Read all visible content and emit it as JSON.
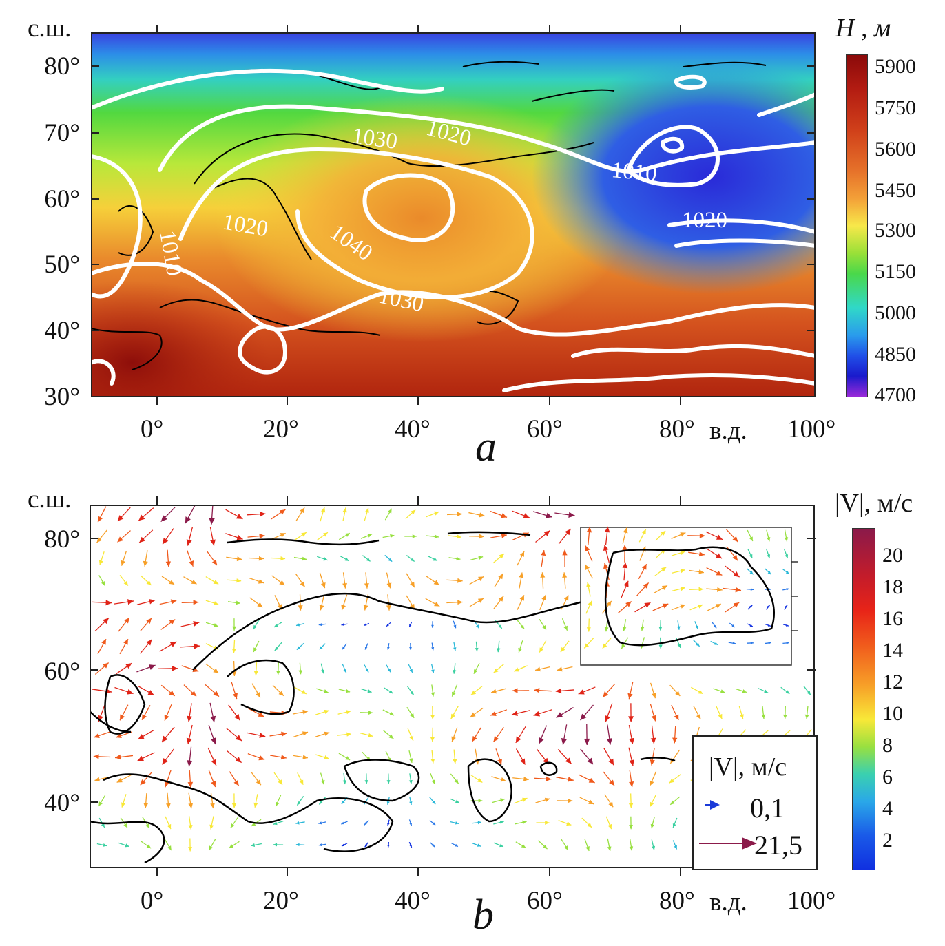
{
  "panel_a": {
    "letter": "a",
    "colorbar_title": "H , м",
    "colorbar_ticks": [
      "5900",
      "5750",
      "5600",
      "5450",
      "5300",
      "5150",
      "5000",
      "4850",
      "4700"
    ],
    "colorbar_colors": [
      "#8b0a0a",
      "#c0301a",
      "#e06820",
      "#f3a038",
      "#f7e84a",
      "#72d93c",
      "#30d8c8",
      "#2878e8",
      "#1818d0",
      "#9a2ad8"
    ],
    "lat_labels": [
      "80°",
      "70°",
      "60°",
      "50°",
      "40°",
      "30°"
    ],
    "lat_unit": "с.ш.",
    "lon_labels": [
      "0°",
      "20°",
      "40°",
      "60°",
      "80°",
      "100°"
    ],
    "lon_unit": "в.д.",
    "isobar_labels": [
      "1020",
      "1030",
      "1010",
      "1010",
      "1020",
      "1040",
      "1030",
      "1020"
    ]
  },
  "panel_b": {
    "letter": "b",
    "colorbar_title": "|V|, м/с",
    "colorbar_ticks": [
      "20",
      "18",
      "16",
      "14",
      "12",
      "10",
      "8",
      "6",
      "4",
      "2"
    ],
    "colorbar_colors": [
      "#8b1a4a",
      "#d81c1c",
      "#f05020",
      "#f8a028",
      "#f8e838",
      "#98e040",
      "#30d0c0",
      "#2888e8",
      "#1030e0"
    ],
    "lat_labels": [
      "80°",
      "60°",
      "40°"
    ],
    "lat_unit": "с.ш.",
    "lon_labels": [
      "0°",
      "20°",
      "40°",
      "60°",
      "80°",
      "100°"
    ],
    "lon_unit": "в.д.",
    "legend": {
      "title": "|V|, м/с",
      "min_value": "0,1",
      "max_value": "21,5"
    }
  }
}
